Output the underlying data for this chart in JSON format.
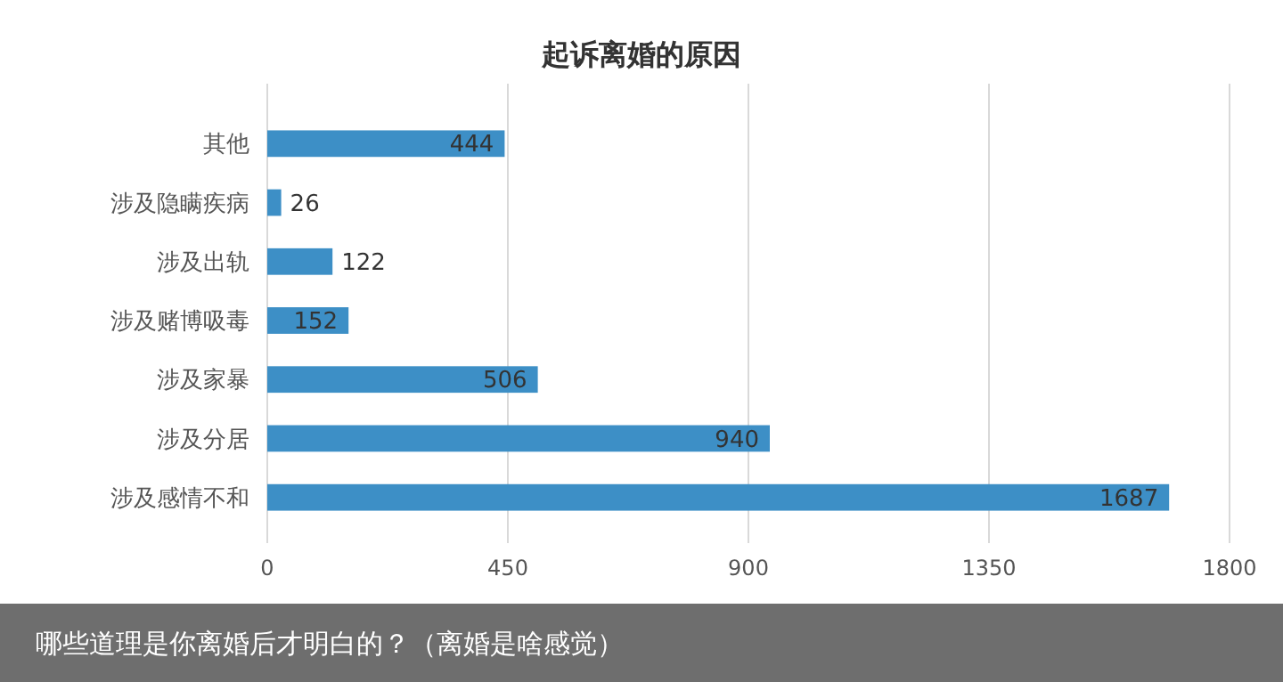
{
  "chart_data": {
    "type": "bar",
    "orientation": "horizontal",
    "title": "起诉离婚的原因",
    "categories": [
      "其他",
      "涉及隐瞒疾病",
      "涉及出轨",
      "涉及赌博吸毒",
      "涉及家暴",
      "涉及分居",
      "涉及感情不和"
    ],
    "values": [
      444,
      26,
      122,
      152,
      506,
      940,
      1687
    ],
    "color": "#3d8fc6",
    "xlim": [
      0,
      1800
    ],
    "xticks": [
      0,
      450,
      900,
      1350,
      1800
    ],
    "grid": "x",
    "data_labels": true,
    "annotations": [
      "哪些道理是你离婚后才明白的？（离婚是啥感觉）"
    ]
  }
}
